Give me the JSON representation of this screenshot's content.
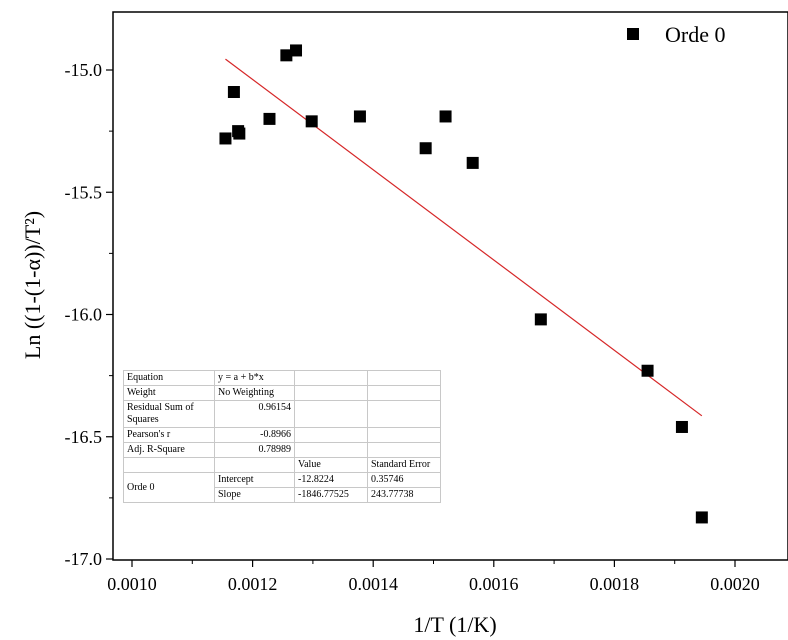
{
  "chart_data": {
    "type": "scatter",
    "xlabel": "1/T (1/K)",
    "ylabel": "Ln ((1-(1-α))/T²)",
    "xlim": [
      0.00095,
      0.0021
    ],
    "ylim": [
      -17.0,
      -14.8
    ],
    "xticks": [
      "0.0010",
      "0.0012",
      "0.0014",
      "0.0016",
      "0.0018",
      "0.0020"
    ],
    "xtick_values": [
      0.001,
      0.0012,
      0.0014,
      0.0016,
      0.0018,
      0.002
    ],
    "yticks": [
      "-15.0",
      "-15.5",
      "-16.0",
      "-16.5",
      "-17.0"
    ],
    "ytick_values": [
      -15.0,
      -15.5,
      -16.0,
      -16.5,
      -17.0
    ],
    "legend_position": "top-right",
    "series": [
      {
        "name": "Orde 0",
        "marker": "square",
        "color": "#000000",
        "x": [
          0.001155,
          0.001169,
          0.001176,
          0.001178,
          0.001228,
          0.001256,
          0.001272,
          0.001298,
          0.001378,
          0.001487,
          0.00152,
          0.001565,
          0.001678,
          0.001855,
          0.001912,
          0.001945
        ],
        "y": [
          -15.28,
          -15.09,
          -15.25,
          -15.26,
          -15.2,
          -14.94,
          -14.92,
          -15.21,
          -15.19,
          -15.32,
          -15.19,
          -15.38,
          -16.02,
          -16.23,
          -16.46,
          -16.83
        ]
      }
    ],
    "fit_line": {
      "color": "#d62728",
      "intercept": -12.8224,
      "slope": -1846.77525,
      "x_range": [
        0.001155,
        0.001945
      ]
    },
    "stats_table": {
      "equation_label": "Equation",
      "equation_value": "y = a + b*x",
      "weight_label": "Weight",
      "weight_value": "No Weighting",
      "rss_label": "Residual Sum of Squares",
      "rss_value": "0.96154",
      "pearson_label": "Pearson's r",
      "pearson_value": "-0.8966",
      "adjr2_label": "Adj. R-Square",
      "adjr2_value": "0.78989",
      "value_header": "Value",
      "stderr_header": "Standard Error",
      "series_name": "Orde 0",
      "intercept_label": "Intercept",
      "intercept_value": "-12.8224",
      "intercept_error": "0.35746",
      "slope_label": "Slope",
      "slope_value": "-1846.77525",
      "slope_error": "243.77738"
    }
  }
}
